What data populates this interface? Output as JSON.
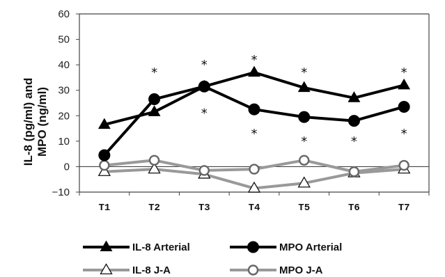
{
  "chart_data": {
    "type": "line",
    "title": "",
    "xlabel": "",
    "ylabel_line1": "IL-8 (pg/ml) and",
    "ylabel_line2": "MPO (ng/ml)",
    "categories": [
      "T1",
      "T2",
      "T3",
      "T4",
      "T5",
      "T6",
      "T7"
    ],
    "ylim": [
      -10,
      60
    ],
    "yticks": [
      -10,
      0,
      10,
      20,
      30,
      40,
      50,
      60
    ],
    "grid": false,
    "legend_position": "bottom",
    "series": [
      {
        "name": "IL-8 Arterial",
        "values": [
          16.5,
          21.5,
          31.5,
          37,
          31,
          27,
          32
        ],
        "color": "#000000",
        "marker": "filled-triangle"
      },
      {
        "name": "MPO Arterial",
        "values": [
          4.5,
          26.5,
          31.5,
          22.5,
          19.5,
          18,
          23.5
        ],
        "color": "#000000",
        "marker": "filled-circle"
      },
      {
        "name": "IL-8 J-A",
        "values": [
          -2,
          -1,
          -3,
          -8.5,
          -6.5,
          -2.5,
          -1
        ],
        "color": "#999999",
        "marker": "open-triangle"
      },
      {
        "name": "MPO J-A",
        "values": [
          0.5,
          2.5,
          -1.5,
          -1,
          2.5,
          -2,
          0.5
        ],
        "color": "#999999",
        "marker": "open-circle"
      }
    ],
    "annotations": [
      {
        "category": "T2",
        "y": 37,
        "text": "*"
      },
      {
        "category": "T3",
        "y": 40,
        "text": "*"
      },
      {
        "category": "T3",
        "y": 21,
        "text": "*"
      },
      {
        "category": "T4",
        "y": 42,
        "text": "*"
      },
      {
        "category": "T4",
        "y": 13,
        "text": "*"
      },
      {
        "category": "T5",
        "y": 37,
        "text": "*"
      },
      {
        "category": "T5",
        "y": 10,
        "text": "*"
      },
      {
        "category": "T6",
        "y": 10,
        "text": "*"
      },
      {
        "category": "T7",
        "y": 37,
        "text": "*"
      },
      {
        "category": "T7",
        "y": 13,
        "text": "*"
      }
    ]
  }
}
